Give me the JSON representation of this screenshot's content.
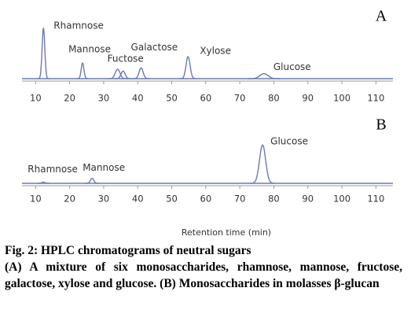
{
  "chart_data": [
    {
      "type": "chromatogram",
      "panel": "A",
      "color": "#6a7bb0",
      "xlim": [
        6,
        115
      ],
      "ylim": [
        0,
        100
      ],
      "xticks": [
        10,
        20,
        30,
        40,
        50,
        60,
        70,
        80,
        90,
        100,
        110
      ],
      "peaks": [
        {
          "name": "Rhamnose",
          "x": 12.3,
          "height": 80,
          "width": 0.4
        },
        {
          "name": "Mannose",
          "x": 23.8,
          "height": 25,
          "width": 0.4
        },
        {
          "name": "Fuctose",
          "x": 34.1,
          "height": 15,
          "width": 0.7
        },
        {
          "name": null,
          "x": 35.7,
          "height": 12,
          "width": 0.6
        },
        {
          "name": "Galactose",
          "x": 41,
          "height": 17,
          "width": 0.6
        },
        {
          "name": "Xylose",
          "x": 54.8,
          "height": 35,
          "width": 0.6
        },
        {
          "name": "Glucose",
          "x": 77.1,
          "height": 8,
          "width": 1.2
        }
      ]
    },
    {
      "type": "chromatogram",
      "panel": "B",
      "color": "#6a7bb0",
      "xlim": [
        6,
        115
      ],
      "ylim": [
        0,
        100
      ],
      "xticks": [
        10,
        20,
        30,
        40,
        50,
        60,
        70,
        80,
        90,
        100,
        110
      ],
      "x_label": "Retention time (min)",
      "peaks": [
        {
          "name": "Rhamnose",
          "x": 12.3,
          "height": 2,
          "width": 0.4
        },
        {
          "name": "Mannose",
          "x": 26.6,
          "height": 8,
          "width": 0.5
        },
        {
          "name": "Glucose",
          "x": 76.7,
          "height": 61,
          "width": 0.9
        }
      ]
    }
  ],
  "caption": {
    "title": "Fig. 2: HPLC chromatograms of neutral sugars",
    "text": "(A) A mixture of six monosaccharides, rhamnose, mannose, fructose, galactose, xylose and glucose. (B) Monosaccharides in molasses β-glucan"
  }
}
